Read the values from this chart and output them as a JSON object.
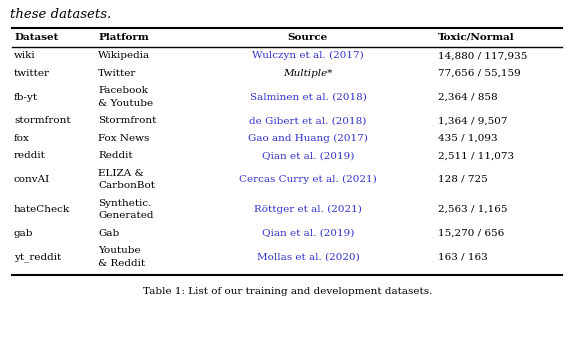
{
  "title_top": "these datasets.",
  "caption_bottom": "Table 1: List of our training and development datasets.",
  "headers": [
    "Dataset",
    "Platform",
    "Source",
    "Toxic/Normal"
  ],
  "rows": [
    {
      "dataset": "wiki",
      "platform": [
        "Wikipedia"
      ],
      "source": "Wulczyn et al. (2017)",
      "source_colored": true,
      "source_italic": false,
      "toxic_normal": "14,880 / 117,935"
    },
    {
      "dataset": "twitter",
      "platform": [
        "Twitter"
      ],
      "source": "Multiple*",
      "source_colored": false,
      "source_italic": true,
      "toxic_normal": "77,656 / 55,159"
    },
    {
      "dataset": "fb-yt",
      "platform": [
        "Facebook",
        "& Youtube"
      ],
      "source": "Salminen et al. (2018)",
      "source_colored": true,
      "source_italic": false,
      "toxic_normal": "2,364 / 858"
    },
    {
      "dataset": "stormfront",
      "platform": [
        "Stormfront"
      ],
      "source": "de Gibert et al. (2018)",
      "source_colored": true,
      "source_italic": false,
      "toxic_normal": "1,364 / 9,507"
    },
    {
      "dataset": "fox",
      "platform": [
        "Fox News"
      ],
      "source": "Gao and Huang (2017)",
      "source_colored": true,
      "source_italic": false,
      "toxic_normal": "435 / 1,093"
    },
    {
      "dataset": "reddit",
      "platform": [
        "Reddit"
      ],
      "source": "Qian et al. (2019)",
      "source_colored": true,
      "source_italic": false,
      "toxic_normal": "2,511 / 11,073"
    },
    {
      "dataset": "convAI",
      "platform": [
        "ELIZA &",
        "CarbonBot"
      ],
      "source": "Cercas Curry et al. (2021)",
      "source_colored": true,
      "source_italic": false,
      "toxic_normal": "128 / 725"
    },
    {
      "dataset": "hateCheck",
      "platform": [
        "Synthetic.",
        "Generated"
      ],
      "source": "Röttger et al. (2021)",
      "source_colored": true,
      "source_italic": false,
      "toxic_normal": "2,563 / 1,165"
    },
    {
      "dataset": "gab",
      "platform": [
        "Gab"
      ],
      "source": "Qian et al. (2019)",
      "source_colored": true,
      "source_italic": false,
      "toxic_normal": "15,270 / 656"
    },
    {
      "dataset": "yt_reddit",
      "platform": [
        "Youtube",
        "& Reddit"
      ],
      "source": "Mollas et al. (2020)",
      "source_colored": true,
      "source_italic": false,
      "toxic_normal": "163 / 163"
    }
  ],
  "link_color": "#3333cc",
  "text_color": "#000000",
  "bg_color": "#ffffff",
  "font_size": 7.5,
  "header_font_size": 7.5
}
